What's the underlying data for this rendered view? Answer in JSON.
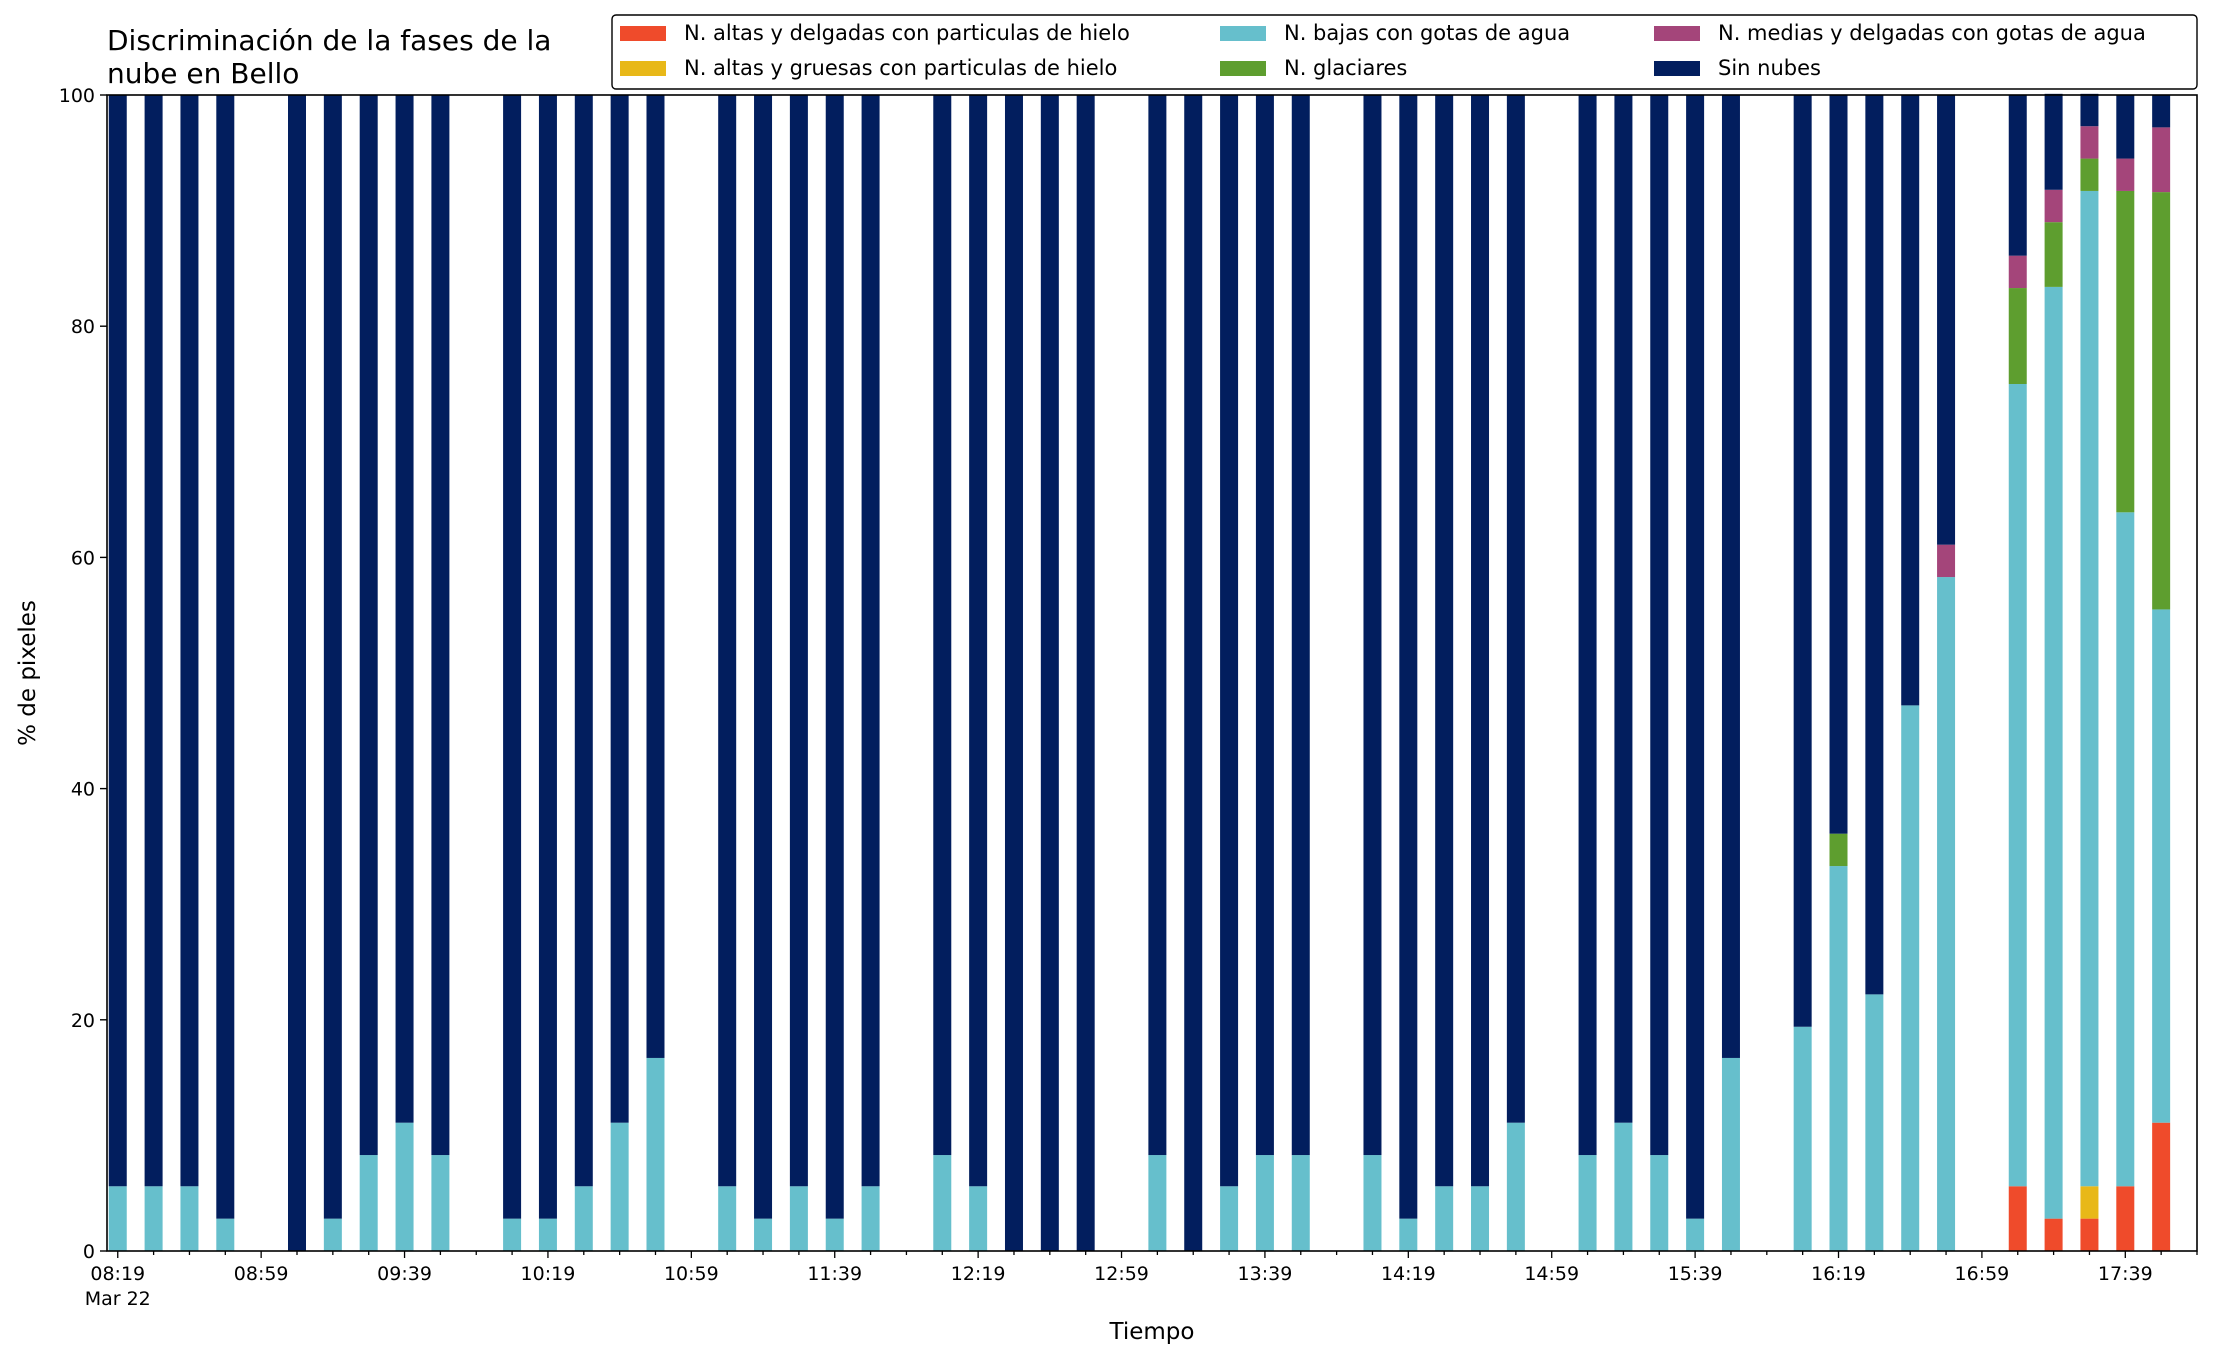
{
  "chart_data": {
    "type": "bar",
    "stacked": true,
    "title_lines": [
      "Discriminación de la fases de la",
      "nube en Bello"
    ],
    "xlabel": "Tiempo",
    "ylabel": "% de pixeles",
    "ylim": [
      0,
      100
    ],
    "yticks": [
      0,
      20,
      40,
      60,
      80,
      100
    ],
    "xlim_minutes": [
      "08:16",
      "17:59"
    ],
    "x_tick_labels": [
      "08:19",
      "08:59",
      "09:39",
      "10:19",
      "10:59",
      "11:39",
      "12:19",
      "12:59",
      "13:39",
      "14:19",
      "14:59",
      "15:39",
      "16:19",
      "16:59",
      "17:39"
    ],
    "x_date_label": "Mar 22",
    "legend_position": "top-right",
    "legend": [
      {
        "name": "N. altas y delgadas con particulas de hielo",
        "color": "#ef4b2b"
      },
      {
        "name": "N. altas y gruesas con particulas de hielo",
        "color": "#e8b818"
      },
      {
        "name": "N. bajas con gotas de agua",
        "color": "#66bfcc"
      },
      {
        "name": "N. glaciares",
        "color": "#5e9e2f"
      },
      {
        "name": "N. medias y delgadas con gotas de agua",
        "color": "#a4457a"
      },
      {
        "name": "Sin nubes",
        "color": "#021e5e"
      }
    ],
    "x": [
      "08:19",
      "08:29",
      "08:39",
      "08:49",
      "09:09",
      "09:19",
      "09:29",
      "09:39",
      "09:49",
      "10:09",
      "10:19",
      "10:29",
      "10:39",
      "10:49",
      "11:09",
      "11:19",
      "11:29",
      "11:39",
      "11:49",
      "12:09",
      "12:19",
      "12:29",
      "12:39",
      "12:49",
      "13:09",
      "13:19",
      "13:29",
      "13:39",
      "13:49",
      "14:09",
      "14:19",
      "14:29",
      "14:39",
      "14:49",
      "15:09",
      "15:19",
      "15:29",
      "15:39",
      "15:49",
      "16:09",
      "16:19",
      "16:29",
      "16:39",
      "16:49",
      "17:09",
      "17:19",
      "17:29",
      "17:39",
      "17:49"
    ],
    "series": [
      {
        "name": "N. altas y delgadas con particulas de hielo",
        "color": "#ef4b2b",
        "values": [
          0,
          0,
          0,
          0,
          0,
          0,
          0,
          0,
          0,
          0,
          0,
          0,
          0,
          0,
          0,
          0,
          0,
          0,
          0,
          0,
          0,
          0,
          0,
          0,
          0,
          0,
          0,
          0,
          0,
          0,
          0,
          0,
          0,
          0,
          0,
          0,
          0,
          0,
          0,
          0,
          0,
          0,
          0,
          0,
          5.6,
          2.8,
          2.8,
          5.6,
          11.1
        ]
      },
      {
        "name": "N. altas y gruesas con particulas de hielo",
        "color": "#e8b818",
        "values": [
          0,
          0,
          0,
          0,
          0,
          0,
          0,
          0,
          0,
          0,
          0,
          0,
          0,
          0,
          0,
          0,
          0,
          0,
          0,
          0,
          0,
          0,
          0,
          0,
          0,
          0,
          0,
          0,
          0,
          0,
          0,
          0,
          0,
          0,
          0,
          0,
          0,
          0,
          0,
          0,
          0,
          0,
          0,
          0,
          0,
          0,
          2.8,
          0,
          0
        ]
      },
      {
        "name": "N. bajas con gotas de agua",
        "color": "#66bfcc",
        "values": [
          5.6,
          5.6,
          5.6,
          2.8,
          0,
          2.8,
          8.3,
          11.1,
          8.3,
          2.8,
          2.8,
          5.6,
          11.1,
          16.7,
          5.6,
          2.8,
          5.6,
          2.8,
          5.6,
          8.3,
          5.6,
          0,
          0,
          0,
          8.3,
          0,
          5.6,
          8.3,
          8.3,
          8.3,
          2.8,
          5.6,
          5.6,
          11.1,
          8.3,
          11.1,
          8.3,
          2.8,
          16.7,
          19.4,
          33.3,
          22.2,
          47.2,
          58.3,
          69.4,
          80.6,
          86.1,
          58.3,
          44.4
        ]
      },
      {
        "name": "N. glaciares",
        "color": "#5e9e2f",
        "values": [
          0,
          0,
          0,
          0,
          0,
          0,
          0,
          0,
          0,
          0,
          0,
          0,
          0,
          0,
          0,
          0,
          0,
          0,
          0,
          0,
          0,
          0,
          0,
          0,
          0,
          0,
          0,
          0,
          0,
          0,
          0,
          0,
          0,
          0,
          0,
          0,
          0,
          0,
          0,
          0,
          2.8,
          0,
          0,
          0,
          8.3,
          5.6,
          2.8,
          27.8,
          36.1
        ]
      },
      {
        "name": "N. medias y delgadas con gotas de agua",
        "color": "#a4457a",
        "values": [
          0,
          0,
          0,
          0,
          0,
          0,
          0,
          0,
          0,
          0,
          0,
          0,
          0,
          0,
          0,
          0,
          0,
          0,
          0,
          0,
          0,
          0,
          0,
          0,
          0,
          0,
          0,
          0,
          0,
          0,
          0,
          0,
          0,
          0,
          0,
          0,
          0,
          0,
          0,
          0,
          0,
          0,
          0,
          2.8,
          2.8,
          2.8,
          2.8,
          2.8,
          5.6
        ]
      },
      {
        "name": "Sin nubes",
        "color": "#021e5e",
        "values": [
          94.4,
          94.4,
          94.4,
          97.2,
          100,
          97.2,
          91.7,
          88.9,
          91.7,
          97.2,
          97.2,
          94.4,
          88.9,
          83.3,
          94.4,
          97.2,
          94.4,
          97.2,
          94.4,
          91.7,
          94.4,
          100,
          100,
          100,
          91.7,
          100,
          94.4,
          91.7,
          91.7,
          91.7,
          97.2,
          94.4,
          94.4,
          88.9,
          91.7,
          88.9,
          91.7,
          97.2,
          83.3,
          80.6,
          63.9,
          77.8,
          52.8,
          38.9,
          13.9,
          8.3,
          2.8,
          5.5,
          2.8
        ]
      }
    ]
  }
}
